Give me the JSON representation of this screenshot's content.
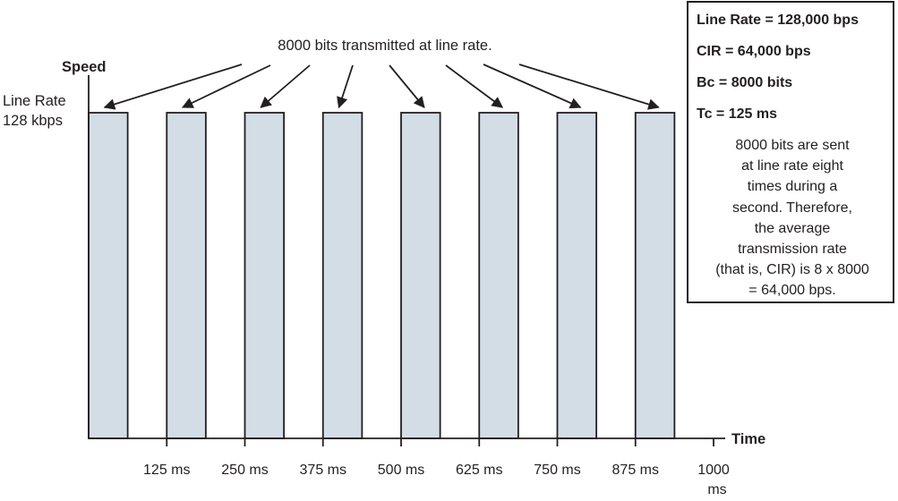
{
  "annotation": "8000 bits transmitted at line rate.",
  "axis": {
    "y_label": "Speed",
    "x_label": "Time",
    "line_rate_label": [
      "Line Rate",
      "128 kbps"
    ],
    "tick_labels": [
      "125 ms",
      "250 ms",
      "375 ms",
      "500 ms",
      "625 ms",
      "750 ms",
      "875 ms",
      "1000"
    ],
    "tick_unit_extra": "ms"
  },
  "chart_data": {
    "type": "bar",
    "title": "",
    "xlabel": "Time",
    "ylabel": "Speed",
    "bars": [
      {
        "start_ms": 0,
        "end_ms": 62.5,
        "speed_kbps": 128
      },
      {
        "start_ms": 125,
        "end_ms": 187.5,
        "speed_kbps": 128
      },
      {
        "start_ms": 250,
        "end_ms": 312.5,
        "speed_kbps": 128
      },
      {
        "start_ms": 375,
        "end_ms": 437.5,
        "speed_kbps": 128
      },
      {
        "start_ms": 500,
        "end_ms": 562.5,
        "speed_kbps": 128
      },
      {
        "start_ms": 625,
        "end_ms": 687.5,
        "speed_kbps": 128
      },
      {
        "start_ms": 750,
        "end_ms": 812.5,
        "speed_kbps": 128
      },
      {
        "start_ms": 875,
        "end_ms": 937.5,
        "speed_kbps": 128
      }
    ],
    "x_ticks_ms": [
      125,
      250,
      375,
      500,
      625,
      750,
      875,
      1000
    ],
    "xlim": [
      0,
      1000
    ],
    "grid": false
  },
  "info_box": {
    "params": [
      "Line Rate = 128,000 bps",
      "CIR = 64,000 bps",
      "Bc = 8000 bits",
      "Tc = 125 ms"
    ],
    "note_lines": [
      "8000 bits are sent",
      "at line rate eight",
      "times during a",
      "second. Therefore,",
      "the average",
      "transmission rate",
      "(that is, CIR) is 8 x 8000",
      "= 64,000 bps."
    ]
  },
  "colors": {
    "bar_fill": "#d3dde6",
    "ink": "#231f20",
    "background": "#ffffff"
  }
}
